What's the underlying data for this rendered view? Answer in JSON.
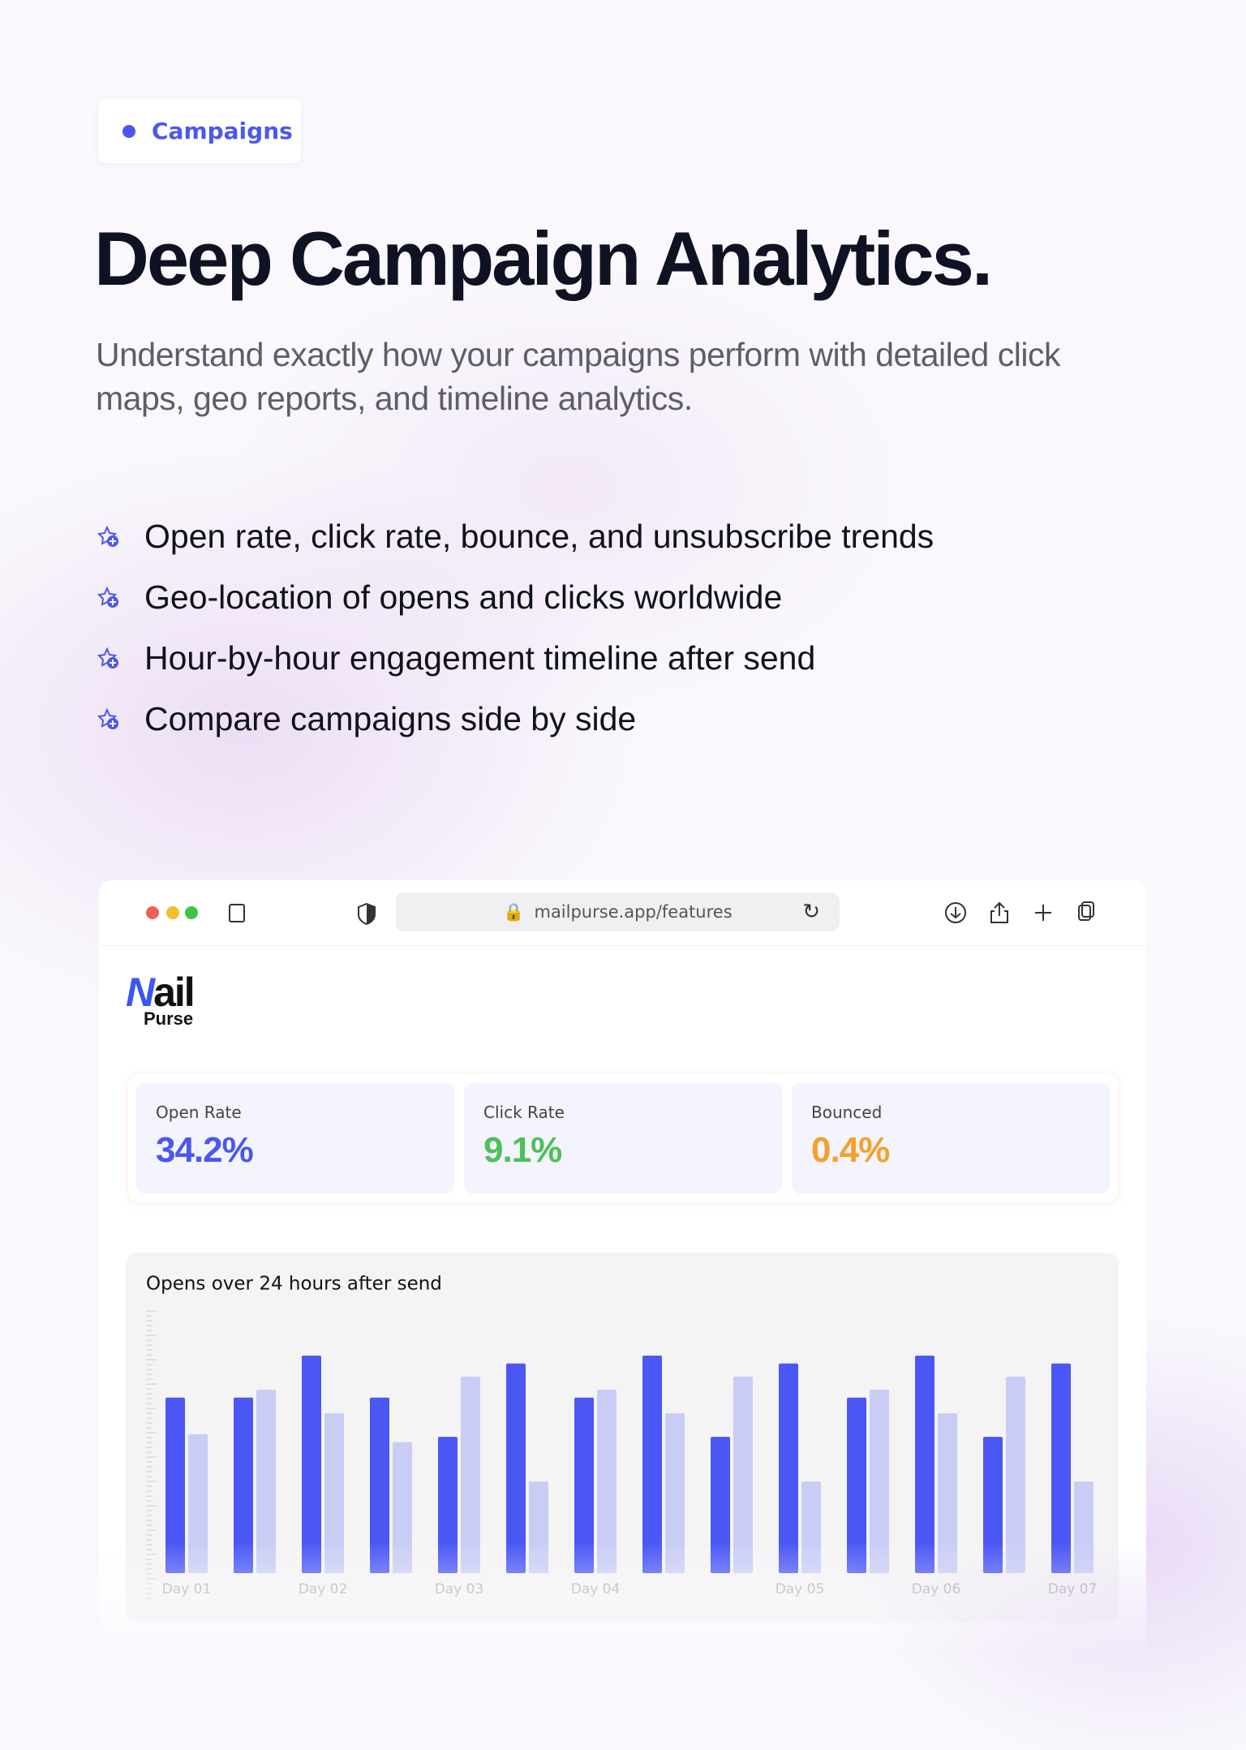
{
  "badge": "Campaigns",
  "header": {
    "title": "Deep Campaign Analytics.",
    "subtitle_lines": [
      "Understand exactly how your campaigns perform with detailed click",
      "maps, geo reports, and timeline analytics."
    ]
  },
  "features": [
    "Open rate, click rate, bounce, and unsubscribe trends",
    "Geo-location of opens and clicks worldwide",
    "Hour-by-hour engagement timeline after send",
    "Compare campaigns side by side"
  ],
  "browser": {
    "url": "mailpurse.app/features"
  },
  "logo": {
    "top": "ail",
    "bottom": "Purse"
  },
  "stats": [
    {
      "label": "Open Rate",
      "value": "34.2%",
      "color": "#4b57f0"
    },
    {
      "label": "Click Rate",
      "value": "9.1%",
      "color": "#4fbf57"
    },
    {
      "label": "Bounced",
      "value": "0.4%",
      "color": "#f5a02c"
    }
  ],
  "chart_data": {
    "type": "bar",
    "title": "Opens over 24 hours after send",
    "categories": [
      "Day 01",
      null,
      "Day 02",
      null,
      "Day 03",
      null,
      "Day 04",
      null,
      null,
      "Day 05",
      null,
      "Day 06",
      null,
      "Day 07"
    ],
    "series": [
      {
        "color": "#4b57f5",
        "values": [
          67,
          67,
          83,
          67,
          52,
          80,
          67,
          83,
          52,
          80,
          67,
          83,
          52,
          80
        ]
      },
      {
        "color": "#c9cdf5",
        "values": [
          53,
          70,
          61,
          50,
          75,
          35,
          70,
          61,
          75,
          35,
          70,
          61,
          75,
          35
        ]
      }
    ],
    "ylim": [
      0,
      100
    ]
  }
}
